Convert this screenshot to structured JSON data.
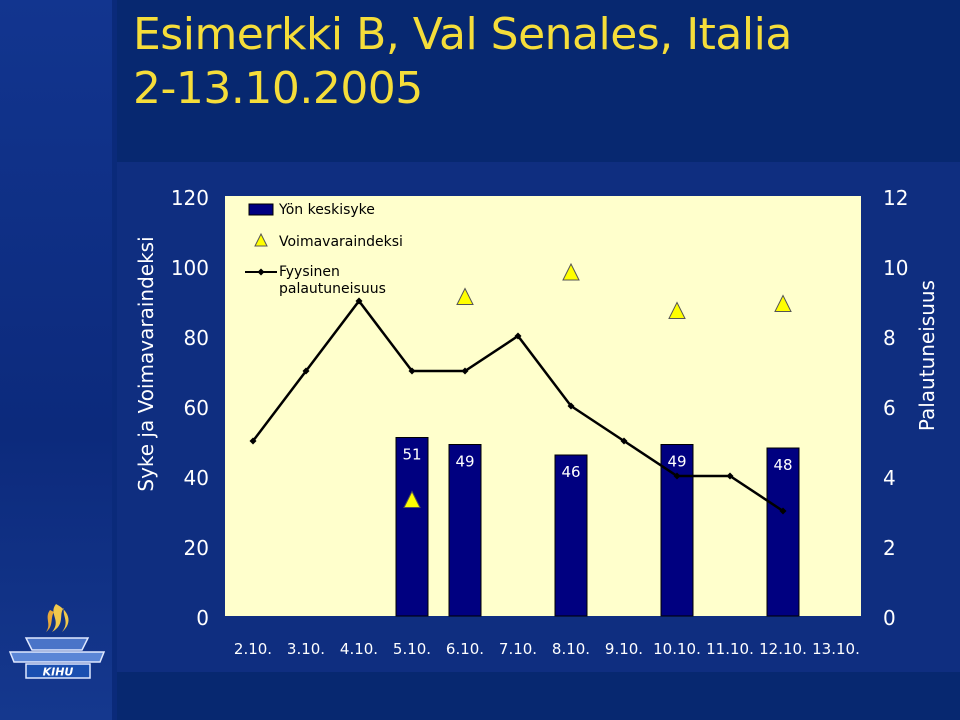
{
  "slide": {
    "title_line1": "Esimerkki B, Val Senales, Italia",
    "title_line2": "2-13.10.2005"
  },
  "logo": {
    "text": "KIHU"
  },
  "chart_data": {
    "type": "bar",
    "categories": [
      "2.10.",
      "3.10.",
      "4.10.",
      "5.10.",
      "6.10.",
      "7.10.",
      "8.10.",
      "9.10.",
      "10.10.",
      "11.10.",
      "12.10.",
      "13.10."
    ],
    "left_axis": {
      "label": "Syke ja Voimavaraindeksi",
      "ylim": [
        0,
        120
      ],
      "ticks": [
        0,
        20,
        40,
        60,
        80,
        100,
        120
      ]
    },
    "right_axis": {
      "label": "Palautuneisuus",
      "ylim": [
        0,
        12
      ],
      "ticks": [
        0,
        2,
        4,
        6,
        8,
        10,
        12
      ]
    },
    "legend_position": "top-left",
    "series": [
      {
        "name": "Yön keskisyke",
        "type": "bar",
        "axis": "left",
        "values": [
          null,
          null,
          null,
          51,
          49,
          null,
          46,
          null,
          49,
          null,
          48,
          null
        ],
        "data_labels": [
          "",
          "",
          "",
          "51",
          "49",
          "",
          "46",
          "",
          "49",
          "",
          "48",
          ""
        ],
        "color": "#000080"
      },
      {
        "name": "Voimavaraindeksi",
        "type": "scatter",
        "marker": "triangle",
        "axis": "left",
        "values": [
          null,
          null,
          null,
          33,
          91,
          null,
          98,
          null,
          87,
          null,
          89,
          null
        ],
        "color": "#ffff00"
      },
      {
        "name": "Fyysinen palautuneisuus",
        "type": "line",
        "marker": "diamond",
        "axis": "right",
        "values": [
          5,
          7,
          9,
          7,
          7,
          8,
          6,
          5,
          4,
          4,
          3,
          null
        ],
        "color": "#000000"
      }
    ],
    "plot_background": "#ffffcc"
  }
}
